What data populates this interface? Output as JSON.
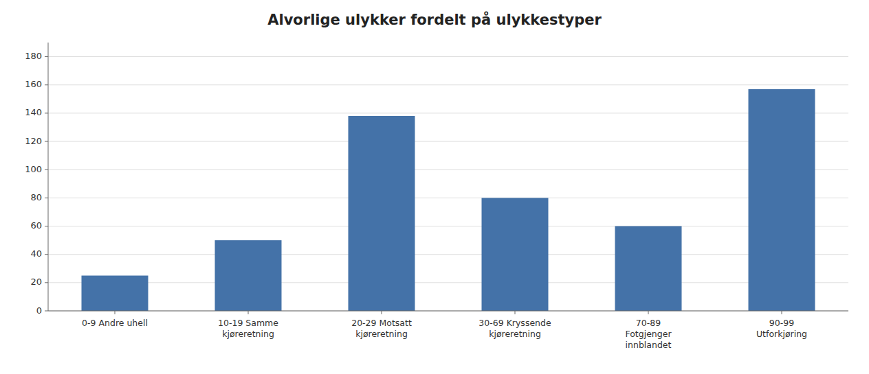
{
  "chart_data": {
    "type": "bar",
    "title": "Alvorlige ulykker fordelt på ulykkestyper",
    "categories": [
      "0-9 Andre uhell",
      "10-19 Samme\nkjøreretning",
      "20-29 Motsatt\nkjøreretning",
      "30-69 Kryssende\nkjøreretning",
      "70-89\nFotgjenger\ninnblandet",
      "90-99\nUtforkjøring"
    ],
    "values": [
      25,
      50,
      138,
      80,
      60,
      157
    ],
    "color": "#4472a8",
    "ylim": [
      0,
      190
    ],
    "yticks": [
      0,
      20,
      40,
      60,
      80,
      100,
      120,
      140,
      160,
      180
    ],
    "grid": true
  }
}
